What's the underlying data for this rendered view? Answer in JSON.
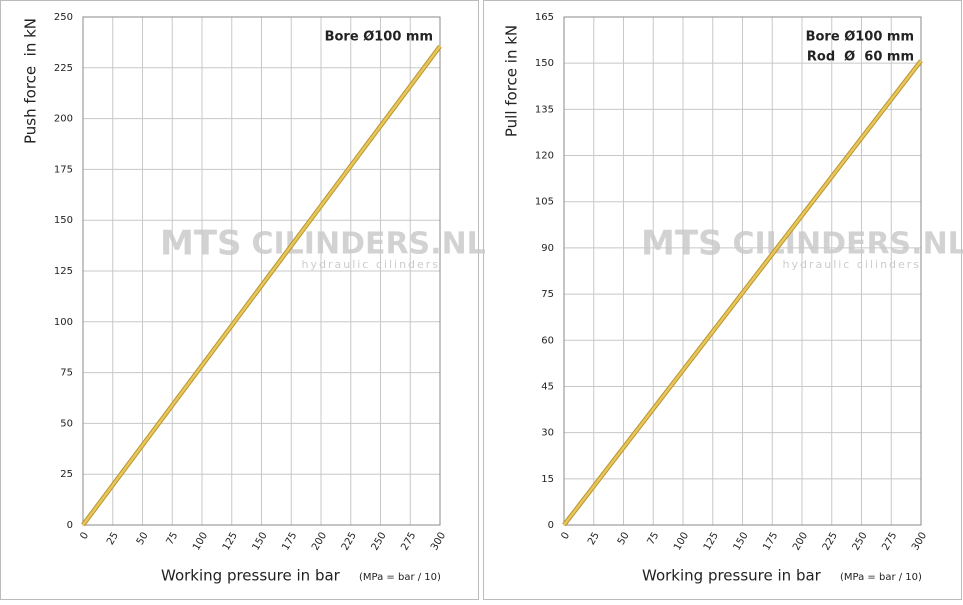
{
  "chart_data": [
    {
      "type": "line",
      "xlabel": "Working pressure in bar",
      "xlabel_note": "(MPa = bar / 10)",
      "ylabel": "Push force  in kN",
      "annotations": [
        "Bore Ø100 mm"
      ],
      "watermark": [
        "MTS",
        "CILINDERS.NL",
        "hydraulic cilinders"
      ],
      "series": [
        {
          "x": [
            0,
            300
          ],
          "values": [
            0,
            235.6
          ],
          "color": "#e8c65a"
        }
      ],
      "xlim": [
        0,
        300
      ],
      "xticks": [
        0,
        25,
        50,
        75,
        100,
        125,
        150,
        175,
        200,
        225,
        250,
        275,
        300
      ],
      "ylim": [
        0,
        250
      ],
      "yticks": [
        0,
        25,
        50,
        75,
        100,
        125,
        150,
        175,
        200,
        225,
        250
      ],
      "grid": true
    },
    {
      "type": "line",
      "xlabel": "Working pressure in bar",
      "xlabel_note": "(MPa = bar / 10)",
      "ylabel": "Pull force in kN",
      "annotations": [
        "Bore Ø100 mm",
        "Rod  Ø  60 mm"
      ],
      "watermark": [
        "MTS",
        "CILINDERS.NL",
        "hydraulic cilinders"
      ],
      "series": [
        {
          "x": [
            0,
            300
          ],
          "values": [
            0,
            150.8
          ],
          "color": "#e8c65a"
        }
      ],
      "xlim": [
        0,
        300
      ],
      "xticks": [
        0,
        25,
        50,
        75,
        100,
        125,
        150,
        175,
        200,
        225,
        250,
        275,
        300
      ],
      "ylim": [
        0,
        165
      ],
      "yticks": [
        0,
        15,
        30,
        45,
        60,
        75,
        90,
        105,
        120,
        135,
        150,
        165
      ],
      "grid": true
    }
  ]
}
